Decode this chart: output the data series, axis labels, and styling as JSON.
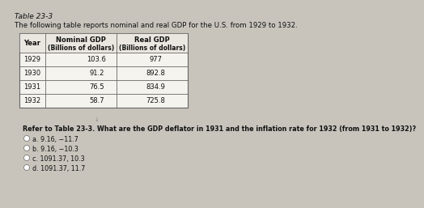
{
  "title_line1": "Table 23-3",
  "title_line2": "The following table reports nominal and real GDP for the U.S. from 1929 to 1932.",
  "col_headers_line1": [
    "Year",
    "Nominal GDP",
    "Real GDP"
  ],
  "col_headers_line2": [
    "",
    "(Billions of dollars)",
    "(Billions of dollars)"
  ],
  "rows": [
    [
      "1929",
      "103.6",
      "977"
    ],
    [
      "1930",
      "91.2",
      "892.8"
    ],
    [
      "1931",
      "76.5",
      "834.9"
    ],
    [
      "1932",
      "58.7",
      "725.8"
    ]
  ],
  "question": "Refer to Table 23-3. What are the GDP deflator in 1931 and the inflation rate for 1932 (from 1931 to 1932)?",
  "options": [
    "a. 9.16, −11.7",
    "b. 9.16, −10.3",
    "c. 1091.37, 10.3",
    "d. 1091.37, 11.7"
  ],
  "bg_color": "#c8c4bc",
  "table_bg": "#f5f3ee",
  "text_color": "#111111",
  "border_color": "#666666"
}
